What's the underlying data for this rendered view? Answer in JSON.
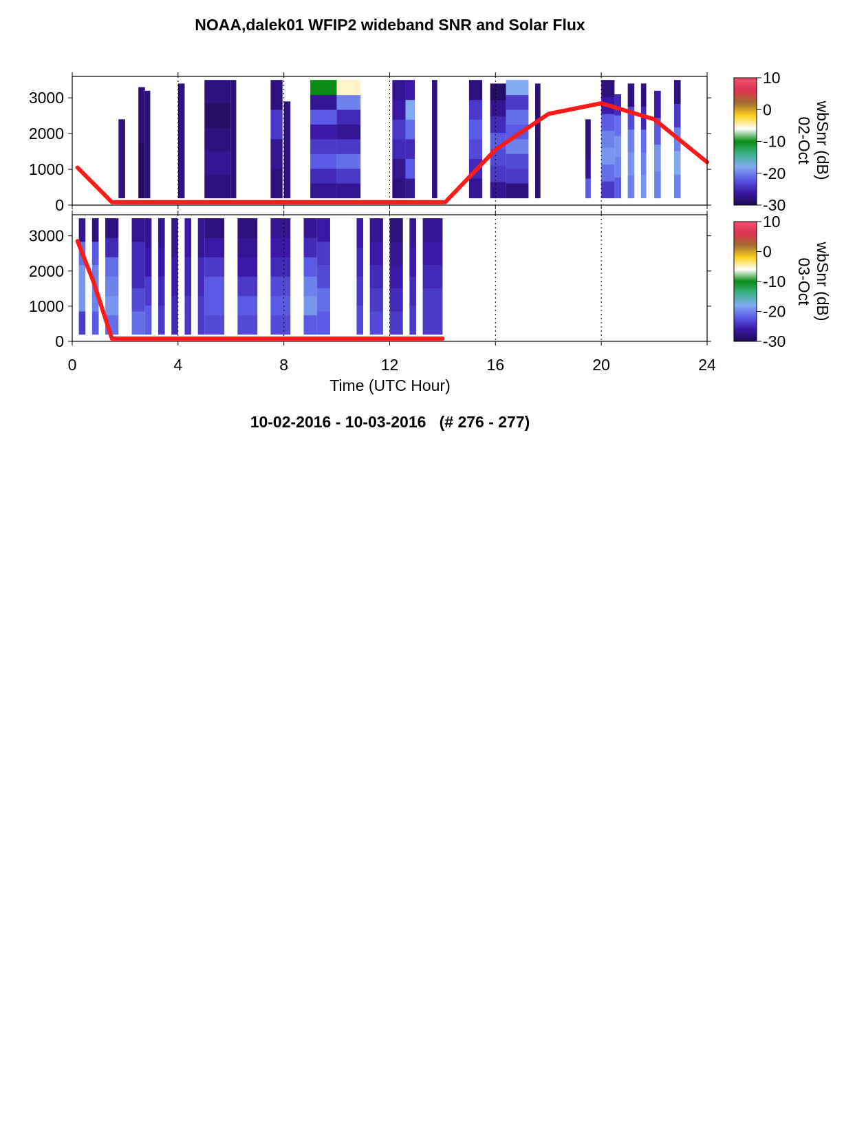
{
  "chart_data": {
    "type": "heatmap",
    "title": "NOAA,dalek01 WFIP2 wideband SNR and Solar Flux",
    "xlabel": "Time (UTC Hour)",
    "xlim": [
      0,
      24
    ],
    "x_ticks": [
      "0",
      "4",
      "8",
      "12",
      "16",
      "20",
      "24"
    ],
    "ylim": [
      0,
      3600
    ],
    "y_ticks": [
      "0",
      "1000",
      "2000",
      "3000"
    ],
    "grid": "vertical dotted lines at 4-hour intervals",
    "colorbar": {
      "label": "wbSnr (dB)",
      "range": [
        -30,
        10
      ],
      "ticks": [
        "10",
        "0",
        "-10",
        "-20",
        "-30"
      ],
      "colors": [
        "#1e0a50",
        "#3b18a8",
        "#5a5ae6",
        "#82aaf0",
        "#3cb48c",
        "#0a8c14",
        "#ffffff",
        "#ffd21e",
        "#a06e32",
        "#dc3250",
        "#f0506e"
      ]
    },
    "panels": [
      {
        "date_label": "02-Oct",
        "solar_flux_curve": [
          [
            0.2,
            1050
          ],
          [
            1.5,
            80
          ],
          [
            14.1,
            80
          ],
          [
            16,
            1550
          ],
          [
            18,
            2550
          ],
          [
            20,
            2850
          ],
          [
            22,
            2400
          ],
          [
            24,
            1200
          ]
        ],
        "snr_columns": [
          {
            "x0": 1.75,
            "x1": 2.0,
            "top": 2400,
            "snr": [
              -28
            ]
          },
          {
            "x0": 2.5,
            "x1": 2.75,
            "top": 3300,
            "snr": [
              -29,
              -28
            ]
          },
          {
            "x0": 2.75,
            "x1": 2.95,
            "top": 3200,
            "snr": [
              -28
            ]
          },
          {
            "x0": 4.0,
            "x1": 4.25,
            "top": 3400,
            "snr": [
              -28
            ]
          },
          {
            "x0": 5.0,
            "x1": 6.0,
            "top": 3500,
            "snr": [
              -28,
              -27,
              -28,
              -29,
              -28
            ]
          },
          {
            "x0": 6.0,
            "x1": 6.2,
            "top": 3500,
            "snr": [
              -28
            ]
          },
          {
            "x0": 7.5,
            "x1": 7.95,
            "top": 3500,
            "snr": [
              -28,
              -27,
              -24,
              -28
            ]
          },
          {
            "x0": 8.0,
            "x1": 8.25,
            "top": 2900,
            "snr": [
              -28
            ]
          },
          {
            "x0": 9.0,
            "x1": 10.0,
            "top": 3500,
            "snr": [
              -27,
              -25,
              -22,
              -24,
              -26,
              -22,
              -27,
              -10
            ]
          },
          {
            "x0": 10.0,
            "x1": 10.9,
            "top": 3500,
            "snr": [
              -27,
              -24,
              -21,
              -24,
              -27,
              -25,
              -20,
              -5
            ]
          },
          {
            "x0": 12.1,
            "x1": 12.6,
            "top": 3500,
            "snr": [
              -28,
              -27,
              -25,
              -24,
              -26,
              -27
            ]
          },
          {
            "x0": 12.6,
            "x1": 12.95,
            "top": 3500,
            "snr": [
              -27,
              -22,
              -25,
              -21,
              -18,
              -26
            ]
          },
          {
            "x0": 13.6,
            "x1": 13.8,
            "top": 3500,
            "snr": [
              -28
            ]
          },
          {
            "x0": 15.0,
            "x1": 15.5,
            "top": 3500,
            "snr": [
              -27,
              -25,
              -23,
              -22,
              -24,
              -28
            ]
          },
          {
            "x0": 15.8,
            "x1": 16.4,
            "top": 3400,
            "snr": [
              -27,
              -24,
              -23,
              -22,
              -25,
              -27,
              -29
            ]
          },
          {
            "x0": 16.4,
            "x1": 17.25,
            "top": 3500,
            "snr": [
              -28,
              -24,
              -23,
              -20,
              -22,
              -21,
              -24,
              -18
            ]
          },
          {
            "x0": 17.5,
            "x1": 17.7,
            "top": 3400,
            "snr": [
              -28
            ]
          },
          {
            "x0": 19.4,
            "x1": 19.6,
            "top": 2400,
            "snr": [
              -22,
              -27,
              -28,
              -28
            ]
          },
          {
            "x0": 20.0,
            "x1": 20.5,
            "top": 3500,
            "snr": [
              -24,
              -21,
              -19,
              -20,
              -22,
              -26,
              -28
            ]
          },
          {
            "x0": 20.5,
            "x1": 20.75,
            "top": 3100,
            "snr": [
              -22,
              -20,
              -19,
              -21,
              -25
            ]
          },
          {
            "x0": 21.0,
            "x1": 21.25,
            "top": 3400,
            "snr": [
              -20,
              -19,
              -20,
              -23,
              -28
            ]
          },
          {
            "x0": 21.5,
            "x1": 21.7,
            "top": 3400,
            "snr": [
              -19,
              -20,
              -21,
              -25,
              -28
            ]
          },
          {
            "x0": 22.0,
            "x1": 22.25,
            "top": 3200,
            "snr": [
              -20,
              -19,
              -22,
              -26
            ]
          },
          {
            "x0": 22.75,
            "x1": 23.0,
            "top": 3500,
            "snr": [
              -20,
              -18,
              -20,
              -24,
              -28
            ]
          }
        ]
      },
      {
        "date_label": "03-Oct",
        "solar_flux_curve": [
          [
            0.2,
            2850
          ],
          [
            0.8,
            1700
          ],
          [
            1.5,
            80
          ],
          [
            14.0,
            80
          ]
        ],
        "snr_columns": [
          {
            "x0": 0.25,
            "x1": 0.5,
            "top": 3500,
            "snr": [
              -24,
              -19,
              -19,
              -21,
              -27
            ]
          },
          {
            "x0": 0.75,
            "x1": 1.0,
            "top": 3500,
            "snr": [
              -22,
              -20,
              -20,
              -22,
              -28
            ]
          },
          {
            "x0": 1.25,
            "x1": 1.75,
            "top": 3500,
            "snr": [
              -21,
              -19,
              -20,
              -21,
              -25,
              -28
            ]
          },
          {
            "x0": 2.25,
            "x1": 2.75,
            "top": 3500,
            "snr": [
              -21,
              -23,
              -25,
              -25,
              -27
            ]
          },
          {
            "x0": 2.75,
            "x1": 3.0,
            "top": 3500,
            "snr": [
              -22,
              -24,
              -26,
              -27
            ]
          },
          {
            "x0": 3.25,
            "x1": 3.5,
            "top": 3500,
            "snr": [
              -24,
              -25,
              -26,
              -27
            ]
          },
          {
            "x0": 3.75,
            "x1": 4.0,
            "top": 3500,
            "snr": [
              -25,
              -26,
              -27
            ]
          },
          {
            "x0": 4.25,
            "x1": 4.5,
            "top": 3500,
            "snr": [
              -24,
              -25,
              -26
            ]
          },
          {
            "x0": 4.75,
            "x1": 5.0,
            "top": 3500,
            "snr": [
              -24,
              -25,
              -27
            ]
          },
          {
            "x0": 5.0,
            "x1": 5.75,
            "top": 3500,
            "snr": [
              -23,
              -22,
              -22,
              -24,
              -26,
              -28
            ]
          },
          {
            "x0": 6.25,
            "x1": 7.0,
            "top": 3500,
            "snr": [
              -23,
              -22,
              -24,
              -26,
              -27,
              -28
            ]
          },
          {
            "x0": 7.5,
            "x1": 8.25,
            "top": 3500,
            "snr": [
              -23,
              -22,
              -23,
              -25,
              -26,
              -27
            ]
          },
          {
            "x0": 8.75,
            "x1": 9.25,
            "top": 3500,
            "snr": [
              -22,
              -19,
              -20,
              -22,
              -25,
              -27
            ]
          },
          {
            "x0": 9.25,
            "x1": 9.75,
            "top": 3500,
            "snr": [
              -22,
              -21,
              -23,
              -24,
              -26
            ]
          },
          {
            "x0": 10.75,
            "x1": 11.0,
            "top": 3500,
            "snr": [
              -23,
              -24,
              -25,
              -26
            ]
          },
          {
            "x0": 11.25,
            "x1": 11.75,
            "top": 3500,
            "snr": [
              -23,
              -24,
              -25,
              -26,
              -27
            ]
          },
          {
            "x0": 12.0,
            "x1": 12.5,
            "top": 3500,
            "snr": [
              -24,
              -25,
              -26,
              -27,
              -28
            ]
          },
          {
            "x0": 12.75,
            "x1": 13.0,
            "top": 3500,
            "snr": [
              -24,
              -25,
              -26,
              -27
            ]
          },
          {
            "x0": 13.25,
            "x1": 14.0,
            "top": 3500,
            "snr": [
              -24,
              -24,
              -25,
              -26,
              -27
            ]
          }
        ]
      }
    ],
    "footer": "10-02-2016 - 10-03-2016   (# 276 - 277)"
  }
}
